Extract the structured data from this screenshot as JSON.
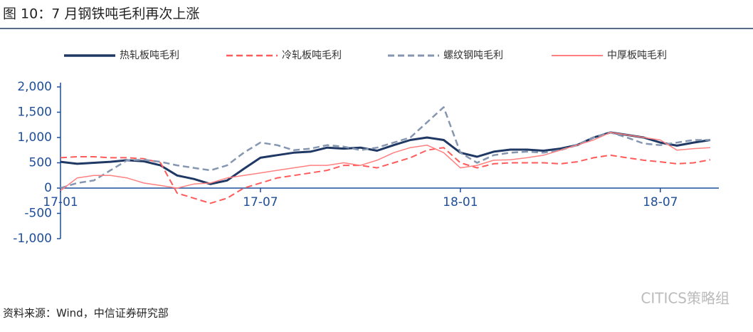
{
  "chart_data": {
    "type": "line",
    "title": "图 10：7 月钢铁吨毛利再次上涨",
    "source": "资料来源：Wind，中信证券研究部",
    "watermark": "CITICS策略组",
    "categories": [
      "17-01",
      null,
      null,
      null,
      null,
      null,
      null,
      null,
      null,
      null,
      null,
      null,
      "17-07",
      null,
      null,
      null,
      null,
      null,
      null,
      null,
      null,
      null,
      null,
      null,
      "18-01",
      null,
      null,
      null,
      null,
      null,
      null,
      null,
      null,
      null,
      null,
      null,
      "18-07",
      null,
      null,
      null
    ],
    "series": [
      {
        "name": "热轧板吨毛利",
        "color": "#1f3864",
        "width": 3,
        "dash": false,
        "values": [
          520,
          480,
          500,
          520,
          550,
          530,
          450,
          250,
          180,
          80,
          150,
          380,
          600,
          650,
          700,
          720,
          800,
          780,
          800,
          740,
          850,
          950,
          1000,
          950,
          700,
          620,
          720,
          760,
          760,
          740,
          780,
          850,
          1000,
          1100,
          1050,
          1000,
          900,
          840,
          900,
          950
        ]
      },
      {
        "name": "冷轧板吨毛利",
        "color": "#ff5b5b",
        "width": 2,
        "dash": true,
        "values": [
          600,
          620,
          620,
          600,
          600,
          580,
          500,
          -100,
          -200,
          -300,
          -200,
          0,
          100,
          200,
          250,
          300,
          350,
          450,
          450,
          400,
          500,
          600,
          750,
          800,
          500,
          400,
          480,
          500,
          500,
          500,
          480,
          520,
          600,
          650,
          600,
          550,
          520,
          480,
          500,
          560
        ]
      },
      {
        "name": "螺纹钢吨毛利",
        "color": "#8496b0",
        "width": 2.5,
        "dash": true,
        "values": [
          0,
          100,
          150,
          350,
          550,
          560,
          520,
          450,
          400,
          350,
          450,
          700,
          900,
          850,
          750,
          780,
          850,
          820,
          750,
          800,
          900,
          1000,
          1300,
          1600,
          700,
          500,
          650,
          700,
          720,
          700,
          750,
          850,
          1000,
          1100,
          1000,
          880,
          850,
          900,
          950,
          950
        ]
      },
      {
        "name": "中厚板吨毛利",
        "color": "#ff8080",
        "width": 1.5,
        "dash": false,
        "values": [
          -50,
          200,
          250,
          250,
          200,
          100,
          50,
          0,
          80,
          100,
          200,
          250,
          300,
          350,
          400,
          450,
          450,
          500,
          450,
          550,
          700,
          800,
          850,
          700,
          400,
          450,
          550,
          560,
          600,
          650,
          750,
          850,
          950,
          1100,
          1050,
          1000,
          950,
          750,
          780,
          800
        ]
      }
    ],
    "ylim": [
      -1000,
      2000
    ],
    "yticks": [
      {
        "value": -1000,
        "label": "-1,000"
      },
      -500,
      0,
      500,
      {
        "value": 1000,
        "label": "1,000"
      },
      {
        "value": 1500,
        "label": "1,500"
      },
      {
        "value": 2000,
        "label": "2,000"
      }
    ]
  }
}
